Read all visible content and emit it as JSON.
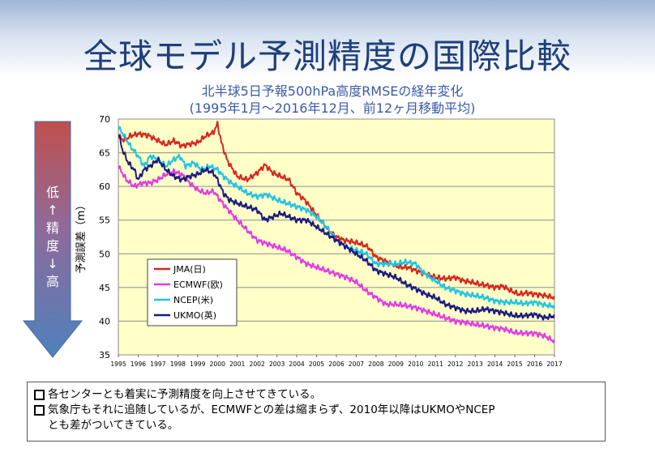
{
  "slide": {
    "title": "全球モデル予測精度の国際比較",
    "subtitle_line1": "北半球5日予報500hPa高度RMSEの経年変化",
    "subtitle_line2": "(1995年1月～2016年12月、前12ヶ月移動平均)",
    "arrow_label_chars": [
      "低",
      "↑",
      "精",
      "度",
      "↓",
      "高"
    ],
    "notes": [
      "各センターとも着実に予測精度を向上させてきている。",
      "気象庁もそれに追随しているが、ECMWFとの差は縮まらず、2010年以降はUKMOやNCEP",
      "とも差がついてきている。"
    ]
  },
  "colors": {
    "plot_background": "#ffffc8",
    "arrow_top": "#c0504d",
    "arrow_bottom": "#4f81bd",
    "title": "#1f3f7a",
    "subtitle": "#3a5aa8"
  },
  "chart_data": {
    "type": "line",
    "title": "北半球5日予報500hPa高度RMSEの経年変化",
    "xlabel": "",
    "ylabel": "予測誤差（m）",
    "xlim": [
      1995,
      2017
    ],
    "ylim": [
      35,
      70
    ],
    "yticks": [
      35,
      40,
      45,
      50,
      55,
      60,
      65,
      70
    ],
    "xticks": [
      "1995",
      "1996",
      "1997",
      "1998",
      "1999",
      "2000",
      "2001",
      "2002",
      "2003",
      "2004",
      "2005",
      "2006",
      "2007",
      "2008",
      "2009",
      "2010",
      "2011",
      "2012",
      "2013",
      "2014",
      "2015",
      "2016",
      "2017"
    ],
    "grid": true,
    "legend_position": "left-middle",
    "series": [
      {
        "name": "JMA(日)",
        "color": "#d7261e",
        "points": [
          [
            1995.0,
            67.5
          ],
          [
            1995.3,
            66.8
          ],
          [
            1995.6,
            67.5
          ],
          [
            1996.0,
            67.8
          ],
          [
            1996.5,
            67.6
          ],
          [
            1997.0,
            66.8
          ],
          [
            1997.4,
            66.2
          ],
          [
            1997.8,
            66.8
          ],
          [
            1998.2,
            66.0
          ],
          [
            1998.6,
            66.3
          ],
          [
            1999.0,
            66.5
          ],
          [
            1999.4,
            67.5
          ],
          [
            1999.8,
            68.0
          ],
          [
            2000.0,
            69.3
          ],
          [
            2000.2,
            66.5
          ],
          [
            2000.5,
            63.8
          ],
          [
            2001.0,
            61.5
          ],
          [
            2001.5,
            61.0
          ],
          [
            2002.0,
            62.0
          ],
          [
            2002.4,
            63.2
          ],
          [
            2002.8,
            62.0
          ],
          [
            2003.2,
            61.5
          ],
          [
            2003.6,
            61.0
          ],
          [
            2004.0,
            59.0
          ],
          [
            2004.4,
            58.0
          ],
          [
            2004.8,
            56.5
          ],
          [
            2005.2,
            55.0
          ],
          [
            2005.6,
            53.5
          ],
          [
            2006.0,
            52.5
          ],
          [
            2006.4,
            52.0
          ],
          [
            2006.8,
            51.8
          ],
          [
            2007.2,
            51.5
          ],
          [
            2007.6,
            51.0
          ],
          [
            2008.0,
            49.5
          ],
          [
            2008.4,
            49.0
          ],
          [
            2008.8,
            48.5
          ],
          [
            2009.2,
            48.0
          ],
          [
            2009.6,
            48.0
          ],
          [
            2010.0,
            47.5
          ],
          [
            2010.5,
            47.0
          ],
          [
            2011.0,
            46.5
          ],
          [
            2011.5,
            46.3
          ],
          [
            2012.0,
            46.5
          ],
          [
            2012.4,
            46.0
          ],
          [
            2012.8,
            45.8
          ],
          [
            2013.2,
            45.5
          ],
          [
            2013.6,
            45.3
          ],
          [
            2014.0,
            45.0
          ],
          [
            2014.4,
            45.2
          ],
          [
            2014.8,
            44.5
          ],
          [
            2015.2,
            44.0
          ],
          [
            2015.6,
            44.2
          ],
          [
            2016.0,
            44.0
          ],
          [
            2016.5,
            43.8
          ],
          [
            2017.0,
            43.5
          ]
        ]
      },
      {
        "name": "ECMWF(欧)",
        "color": "#e33be3",
        "points": [
          [
            1995.0,
            63.0
          ],
          [
            1995.4,
            61.0
          ],
          [
            1995.8,
            60.0
          ],
          [
            1996.2,
            60.5
          ],
          [
            1996.6,
            60.5
          ],
          [
            1997.0,
            61.0
          ],
          [
            1997.4,
            61.8
          ],
          [
            1997.8,
            62.2
          ],
          [
            1998.2,
            61.8
          ],
          [
            1998.6,
            60.5
          ],
          [
            1999.0,
            59.5
          ],
          [
            1999.4,
            59.0
          ],
          [
            1999.8,
            59.3
          ],
          [
            2000.0,
            58.5
          ],
          [
            2000.4,
            57.0
          ],
          [
            2001.0,
            55.0
          ],
          [
            2001.5,
            53.5
          ],
          [
            2002.0,
            52.0
          ],
          [
            2002.5,
            51.5
          ],
          [
            2003.0,
            51.0
          ],
          [
            2003.5,
            50.5
          ],
          [
            2004.0,
            49.5
          ],
          [
            2004.5,
            48.5
          ],
          [
            2005.0,
            48.0
          ],
          [
            2005.5,
            47.5
          ],
          [
            2006.0,
            47.0
          ],
          [
            2006.5,
            46.5
          ],
          [
            2007.0,
            45.8
          ],
          [
            2007.5,
            44.5
          ],
          [
            2008.0,
            43.5
          ],
          [
            2008.5,
            42.5
          ],
          [
            2009.0,
            42.5
          ],
          [
            2009.5,
            42.3
          ],
          [
            2010.0,
            42.0
          ],
          [
            2010.5,
            41.5
          ],
          [
            2011.0,
            41.0
          ],
          [
            2011.5,
            40.5
          ],
          [
            2012.0,
            40.0
          ],
          [
            2012.5,
            39.8
          ],
          [
            2013.0,
            39.5
          ],
          [
            2013.5,
            39.3
          ],
          [
            2014.0,
            39.0
          ],
          [
            2014.5,
            38.8
          ],
          [
            2015.0,
            38.3
          ],
          [
            2015.5,
            38.2
          ],
          [
            2016.0,
            38.2
          ],
          [
            2016.5,
            37.8
          ],
          [
            2017.0,
            37.0
          ]
        ]
      },
      {
        "name": "NCEP(米)",
        "color": "#1ec4e4",
        "points": [
          [
            1995.0,
            68.8
          ],
          [
            1995.3,
            67.5
          ],
          [
            1995.6,
            66.0
          ],
          [
            1996.0,
            64.5
          ],
          [
            1996.3,
            63.0
          ],
          [
            1996.6,
            64.5
          ],
          [
            1997.0,
            64.0
          ],
          [
            1997.4,
            63.0
          ],
          [
            1997.8,
            64.0
          ],
          [
            1998.1,
            64.5
          ],
          [
            1998.4,
            63.0
          ],
          [
            1998.8,
            63.5
          ],
          [
            1999.2,
            62.5
          ],
          [
            1999.6,
            63.0
          ],
          [
            2000.0,
            62.5
          ],
          [
            2000.3,
            61.5
          ],
          [
            2000.7,
            60.5
          ],
          [
            2001.0,
            60.0
          ],
          [
            2001.5,
            59.0
          ],
          [
            2002.0,
            58.5
          ],
          [
            2002.5,
            58.8
          ],
          [
            2003.0,
            58.0
          ],
          [
            2003.5,
            57.5
          ],
          [
            2004.0,
            57.0
          ],
          [
            2004.5,
            56.5
          ],
          [
            2005.0,
            55.5
          ],
          [
            2005.5,
            54.0
          ],
          [
            2006.0,
            52.0
          ],
          [
            2006.5,
            51.0
          ],
          [
            2007.0,
            50.5
          ],
          [
            2007.5,
            50.0
          ],
          [
            2008.0,
            48.5
          ],
          [
            2008.5,
            48.5
          ],
          [
            2009.0,
            48.5
          ],
          [
            2009.5,
            48.8
          ],
          [
            2010.0,
            48.5
          ],
          [
            2010.3,
            47.5
          ],
          [
            2010.7,
            46.5
          ],
          [
            2011.0,
            46.0
          ],
          [
            2011.5,
            45.0
          ],
          [
            2012.0,
            44.5
          ],
          [
            2012.5,
            44.0
          ],
          [
            2013.0,
            43.8
          ],
          [
            2013.5,
            43.5
          ],
          [
            2014.0,
            43.0
          ],
          [
            2014.5,
            42.8
          ],
          [
            2015.0,
            42.8
          ],
          [
            2015.5,
            42.6
          ],
          [
            2016.0,
            42.8
          ],
          [
            2016.5,
            42.4
          ],
          [
            2017.0,
            42.2
          ]
        ]
      },
      {
        "name": "UKMO(英)",
        "color": "#1a1a80",
        "points": [
          [
            1995.0,
            68.0
          ],
          [
            1995.2,
            65.5
          ],
          [
            1995.5,
            63.5
          ],
          [
            1995.8,
            62.5
          ],
          [
            1996.0,
            61.0
          ],
          [
            1996.3,
            62.5
          ],
          [
            1996.6,
            63.0
          ],
          [
            1997.0,
            64.0
          ],
          [
            1997.4,
            62.5
          ],
          [
            1997.8,
            61.5
          ],
          [
            1998.2,
            61.0
          ],
          [
            1998.6,
            61.5
          ],
          [
            1999.0,
            61.8
          ],
          [
            1999.4,
            62.5
          ],
          [
            1999.8,
            62.0
          ],
          [
            2000.0,
            61.0
          ],
          [
            2000.3,
            59.0
          ],
          [
            2000.6,
            58.0
          ],
          [
            2001.0,
            57.5
          ],
          [
            2001.5,
            57.0
          ],
          [
            2002.0,
            56.5
          ],
          [
            2002.4,
            55.0
          ],
          [
            2002.8,
            55.5
          ],
          [
            2003.2,
            56.0
          ],
          [
            2003.6,
            55.5
          ],
          [
            2004.0,
            55.0
          ],
          [
            2004.5,
            55.0
          ],
          [
            2005.0,
            54.0
          ],
          [
            2005.5,
            53.0
          ],
          [
            2006.0,
            52.0
          ],
          [
            2006.5,
            51.0
          ],
          [
            2007.0,
            50.0
          ],
          [
            2007.5,
            49.0
          ],
          [
            2008.0,
            47.5
          ],
          [
            2008.5,
            47.0
          ],
          [
            2009.0,
            46.5
          ],
          [
            2009.5,
            45.5
          ],
          [
            2010.0,
            44.8
          ],
          [
            2010.5,
            44.0
          ],
          [
            2011.0,
            43.5
          ],
          [
            2011.5,
            42.5
          ],
          [
            2012.0,
            42.0
          ],
          [
            2012.5,
            41.5
          ],
          [
            2013.0,
            41.5
          ],
          [
            2013.5,
            41.8
          ],
          [
            2014.0,
            41.5
          ],
          [
            2014.5,
            41.2
          ],
          [
            2015.0,
            40.8
          ],
          [
            2015.5,
            40.8
          ],
          [
            2016.0,
            41.0
          ],
          [
            2016.5,
            40.5
          ],
          [
            2017.0,
            40.8
          ]
        ]
      }
    ]
  }
}
